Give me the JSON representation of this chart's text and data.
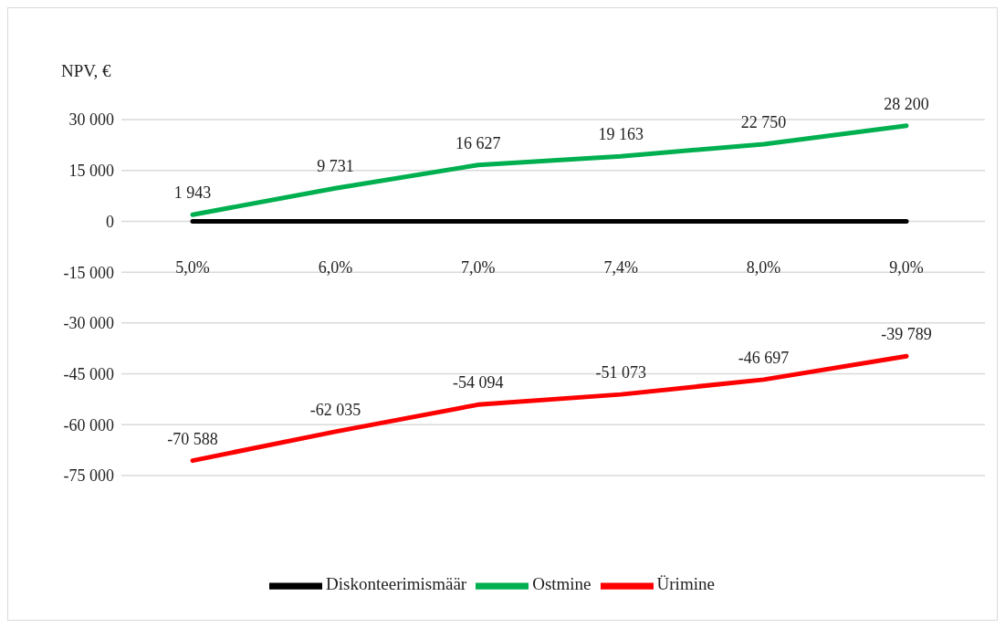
{
  "chart_data": {
    "type": "line",
    "ylabel": "NPV, €",
    "categories": [
      "5,0%",
      "6,0%",
      "7,0%",
      "7,4%",
      "8,0%",
      "9,0%"
    ],
    "series": [
      {
        "name": "Diskonteerimismäär",
        "color": "#000000",
        "values": [
          0,
          0,
          0,
          0,
          0,
          0
        ]
      },
      {
        "name": "Ostmine",
        "color": "#00b050",
        "values": [
          1943,
          9731,
          16627,
          19163,
          22750,
          28200
        ],
        "value_labels": [
          "1 943",
          "9 731",
          "16 627",
          "19 163",
          "22 750",
          "28 200"
        ]
      },
      {
        "name": "Ürimine",
        "color": "#ff0000",
        "values": [
          -70588,
          -62035,
          -54094,
          -51073,
          -46697,
          -39789
        ],
        "value_labels": [
          "-70 588",
          "-62 035",
          "-54 094",
          "-51 073",
          "-46 697",
          "-39 789"
        ]
      }
    ],
    "ylim": [
      -75000,
      30000
    ],
    "yticks": [
      {
        "value": -75000,
        "label": "-75 000"
      },
      {
        "value": -60000,
        "label": "-60 000"
      },
      {
        "value": -45000,
        "label": "-45 000"
      },
      {
        "value": -30000,
        "label": "-30 000"
      },
      {
        "value": -15000,
        "label": "-15 000"
      },
      0,
      {
        "value": 15000,
        "label": "15 000"
      },
      {
        "value": 30000,
        "label": "30 000"
      }
    ],
    "grid": "y",
    "legend": "bottom",
    "marker": "none",
    "line_style": "solid"
  }
}
